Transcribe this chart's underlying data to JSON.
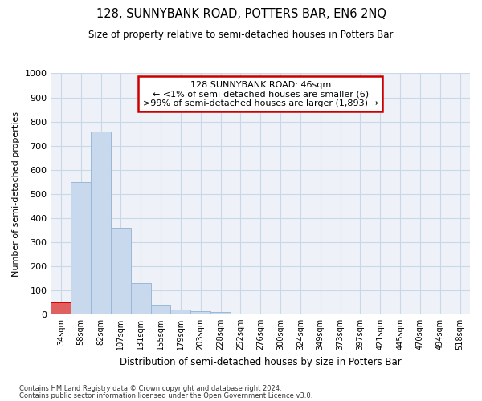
{
  "title1": "128, SUNNYBANK ROAD, POTTERS BAR, EN6 2NQ",
  "title2": "Size of property relative to semi-detached houses in Potters Bar",
  "xlabel": "Distribution of semi-detached houses by size in Potters Bar",
  "ylabel": "Number of semi-detached properties",
  "categories": [
    "34sqm",
    "58sqm",
    "82sqm",
    "107sqm",
    "131sqm",
    "155sqm",
    "179sqm",
    "203sqm",
    "228sqm",
    "252sqm",
    "276sqm",
    "300sqm",
    "324sqm",
    "349sqm",
    "373sqm",
    "397sqm",
    "421sqm",
    "445sqm",
    "470sqm",
    "494sqm",
    "518sqm"
  ],
  "values": [
    50,
    550,
    760,
    360,
    130,
    40,
    20,
    12,
    9,
    0,
    0,
    0,
    0,
    0,
    0,
    0,
    0,
    0,
    0,
    0,
    0
  ],
  "bar_color": "#c9d9ed",
  "bar_edge_color": "#9ab8d8",
  "highlight_bar_index": 0,
  "highlight_bar_color": "#e06060",
  "highlight_bar_edge": "#cc0000",
  "ylim": [
    0,
    1000
  ],
  "yticks": [
    0,
    100,
    200,
    300,
    400,
    500,
    600,
    700,
    800,
    900,
    1000
  ],
  "annotation_text": "128 SUNNYBANK ROAD: 46sqm\n← <1% of semi-detached houses are smaller (6)\n>99% of semi-detached houses are larger (1,893) →",
  "annotation_box_color": "#ffffff",
  "annotation_box_edge": "#cc0000",
  "footnote1": "Contains HM Land Registry data © Crown copyright and database right 2024.",
  "footnote2": "Contains public sector information licensed under the Open Government Licence v3.0.",
  "grid_color": "#c8d8e8",
  "background_color": "#eef2f8"
}
